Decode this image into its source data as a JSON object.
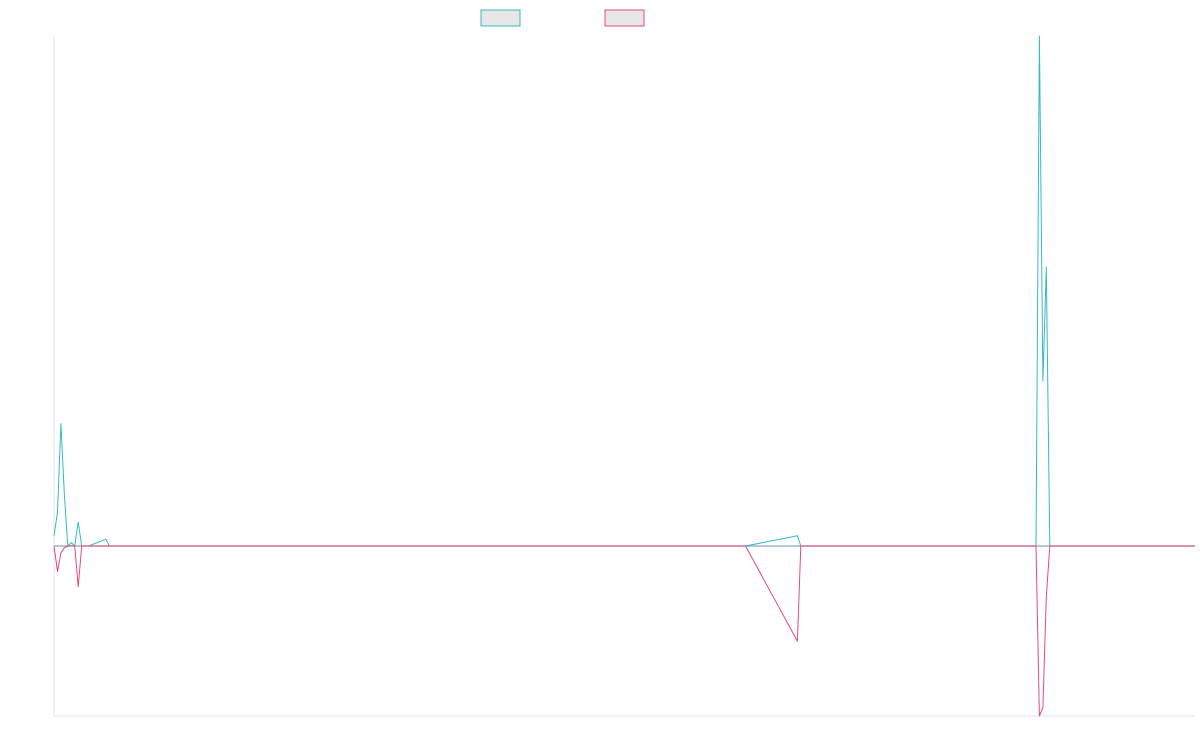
{
  "chart_data": {
    "type": "line",
    "title": "",
    "xlabel": "",
    "ylabel": "",
    "grid": false,
    "legend_placement": "top-center",
    "x": [
      0,
      1,
      2,
      3,
      4,
      5,
      6,
      7,
      8,
      9,
      10,
      15,
      16,
      20,
      100,
      200,
      215,
      216,
      217,
      250,
      275,
      284,
      285,
      286,
      287,
      288,
      300,
      330
    ],
    "ylim": [
      -1.0,
      3.0
    ],
    "series": [
      {
        "color": "#36b9c3",
        "values": [
          0.06,
          0.2,
          0.72,
          0.3,
          0,
          0.02,
          0.0,
          0.14,
          0,
          0,
          0,
          0.04,
          0,
          0,
          0,
          0,
          0.06,
          0,
          0,
          0,
          0,
          0,
          3.0,
          0.97,
          1.64,
          0,
          0,
          0
        ]
      },
      {
        "color": "#e8497a",
        "values": [
          0,
          -0.15,
          -0.04,
          -0.01,
          0,
          0,
          -0.0,
          -0.24,
          0,
          0,
          0,
          0,
          0,
          0,
          0,
          0,
          -0.56,
          0,
          0,
          0,
          0,
          0,
          -1.0,
          -0.95,
          -0.3,
          0,
          0,
          0
        ]
      }
    ]
  },
  "colors": {
    "series_1": "#36b9c3",
    "series_2": "#e8497a",
    "axis": "#e6e6e6",
    "zero_line": "#9fb6c6"
  }
}
